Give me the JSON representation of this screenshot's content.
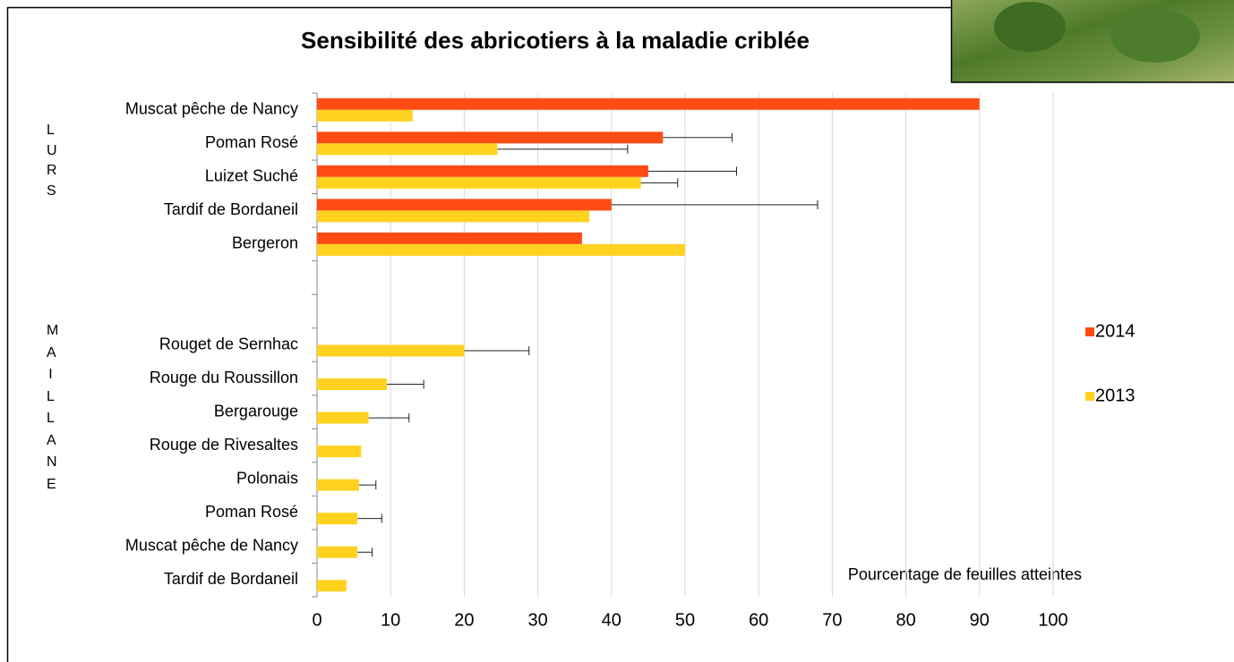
{
  "chart_data": {
    "type": "bar",
    "orientation": "horizontal",
    "title": "Sensibilité des abricotiers à la maladie criblée",
    "xlabel": "Pourcentage de feuilles atteintes",
    "groups": [
      {
        "label": "LURS",
        "from": 0,
        "to": 4
      },
      {
        "label": "MAILLANE",
        "from": 7,
        "to": 14
      }
    ],
    "categories": [
      "Muscat pêche de Nancy",
      "Poman Rosé",
      "Luizet Suché",
      "Tardif de Bordaneil",
      "Bergeron",
      null,
      null,
      "Rouget de Sernhac",
      "Rouge du Roussillon",
      "Bergarouge",
      "Rouge de Rivesaltes",
      "Polonais",
      "Poman Rosé",
      "Muscat pêche de Nancy",
      "Tardif de Bordaneil"
    ],
    "series": [
      {
        "name": "2014",
        "color": "#ff4b14",
        "values": [
          90,
          47,
          45,
          40,
          36,
          null,
          null,
          null,
          null,
          null,
          null,
          null,
          null,
          null,
          null
        ],
        "errors": [
          null,
          9.4,
          12,
          28,
          null,
          null,
          null,
          null,
          null,
          null,
          null,
          null,
          null,
          null,
          null
        ]
      },
      {
        "name": "2013",
        "color": "#ffd21f",
        "values": [
          13,
          24.5,
          44,
          37,
          50,
          null,
          null,
          20,
          9.5,
          7,
          6,
          5.7,
          5.5,
          5.5,
          4
        ],
        "errors": [
          null,
          17.7,
          5,
          null,
          null,
          null,
          null,
          8.8,
          5,
          5.5,
          null,
          2.3,
          3.3,
          2,
          null
        ]
      }
    ],
    "xlim": [
      0,
      100
    ],
    "xticks": [
      0,
      10,
      20,
      30,
      40,
      50,
      60,
      70,
      80,
      90,
      100
    ],
    "grid": true,
    "legend": "right"
  }
}
